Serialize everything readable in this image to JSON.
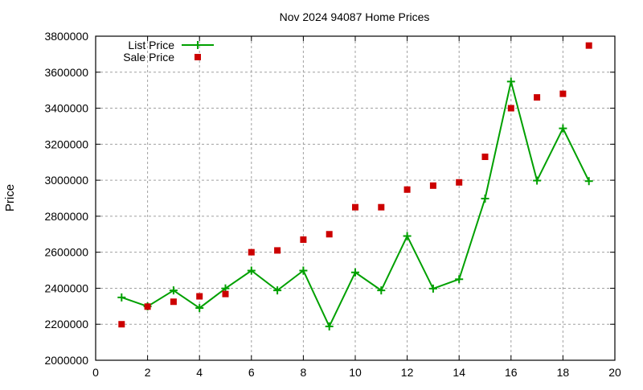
{
  "chart_data": {
    "type": "line",
    "title": "Nov 2024 94087 Home Prices",
    "xlabel": "",
    "ylabel": "Price",
    "xlim": [
      0,
      20
    ],
    "ylim": [
      2000000,
      3800000
    ],
    "xticks": [
      0,
      2,
      4,
      6,
      8,
      10,
      12,
      14,
      16,
      18,
      20
    ],
    "yticks": [
      2000000,
      2200000,
      2400000,
      2600000,
      2800000,
      3000000,
      3200000,
      3400000,
      3600000,
      3800000
    ],
    "grid": true,
    "legend_position": "top-left",
    "x": [
      1,
      2,
      3,
      4,
      5,
      6,
      7,
      8,
      9,
      10,
      11,
      12,
      13,
      14,
      15,
      16,
      17,
      18,
      19
    ],
    "series": [
      {
        "name": "List Price",
        "style": "linespoints",
        "marker": "plus",
        "color": "#00a000",
        "values": [
          2349000,
          2299000,
          2388000,
          2290000,
          2399000,
          2498000,
          2388000,
          2498000,
          2188000,
          2488000,
          2388000,
          2690000,
          2398000,
          2450000,
          2898000,
          3548000,
          2998000,
          3288000,
          2995000
        ]
      },
      {
        "name": "Sale Price",
        "style": "points",
        "marker": "square",
        "color": "#cc0000",
        "values": [
          2200000,
          2298000,
          2325000,
          2355000,
          2368000,
          2600000,
          2610000,
          2670000,
          2700000,
          2850000,
          2850000,
          2948000,
          2970000,
          2988000,
          3130000,
          3400000,
          3460000,
          3480000,
          3748000
        ]
      }
    ]
  }
}
